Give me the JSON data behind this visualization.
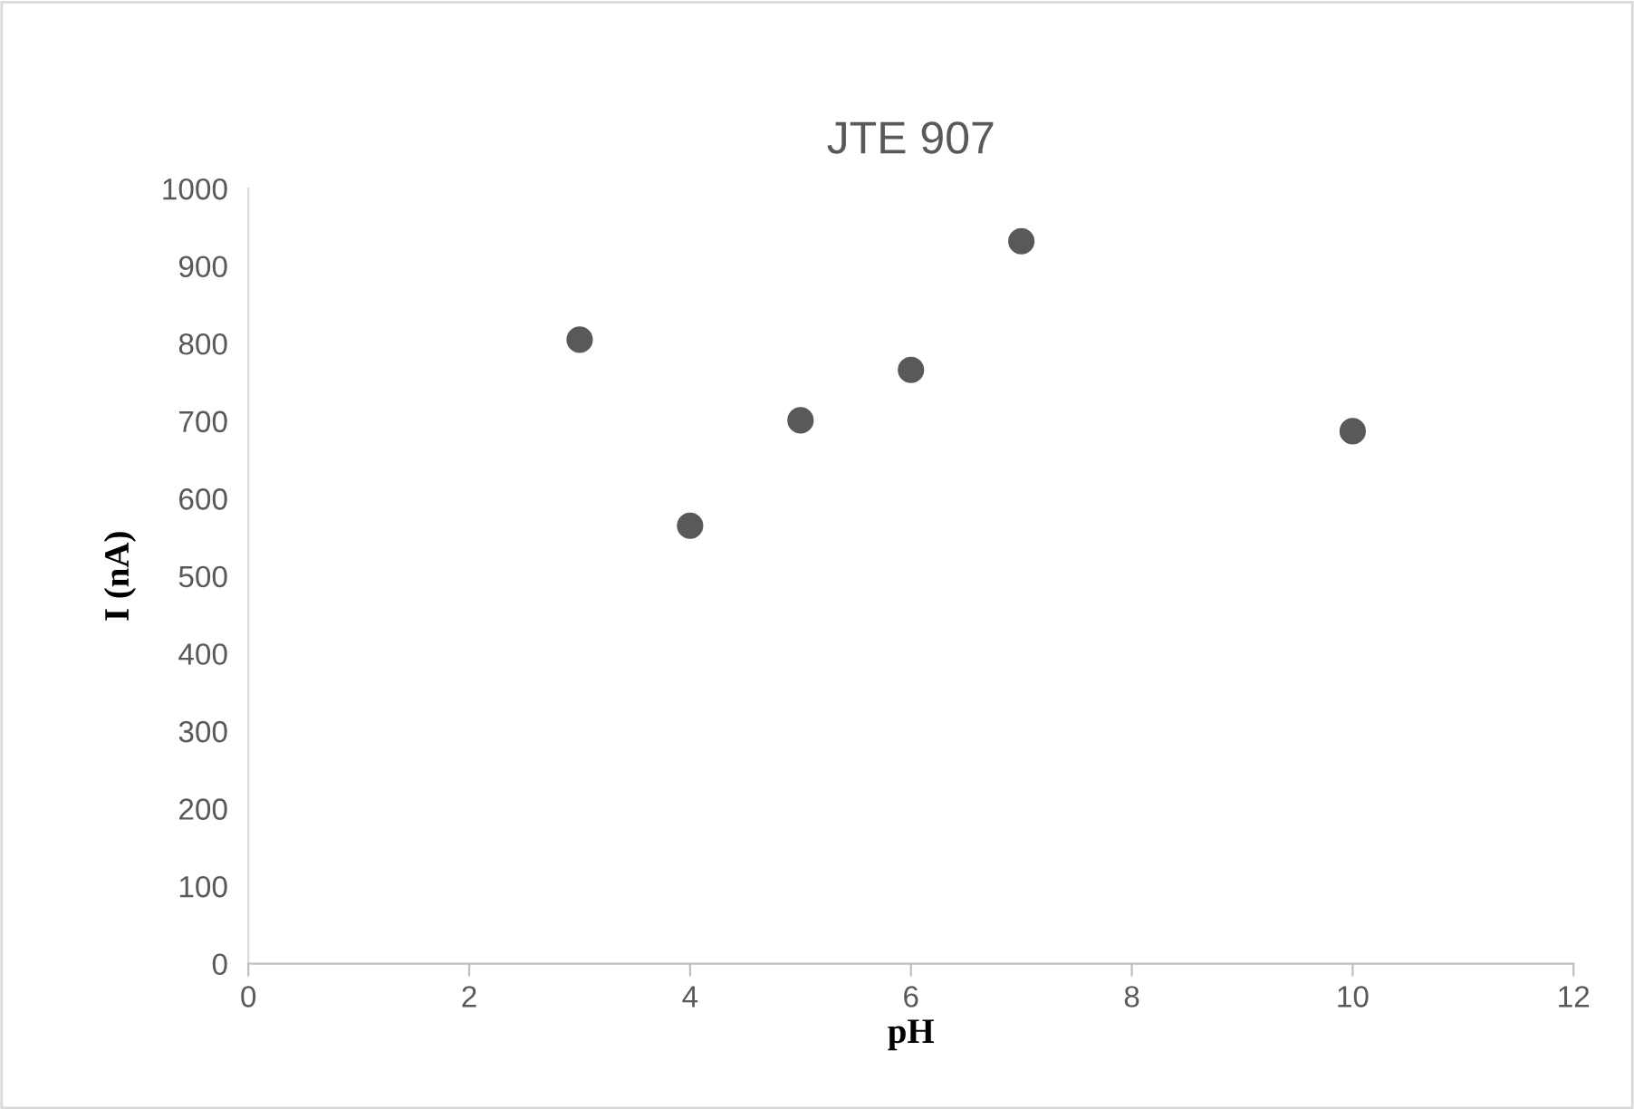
{
  "chart_data": {
    "type": "scatter",
    "title": "JTE 907",
    "xlabel": "pH",
    "ylabel": "I (nA)",
    "x": [
      3,
      4,
      5,
      6,
      7,
      10
    ],
    "series": [
      {
        "color": "#595959",
        "values": [
          805,
          565,
          701,
          766,
          932,
          687
        ]
      }
    ],
    "xlim": [
      0,
      12
    ],
    "xticks": [
      0,
      2,
      4,
      6,
      8,
      10,
      12
    ],
    "ylim": [
      0,
      1000
    ],
    "yticks": [
      0,
      100,
      200,
      300,
      400,
      500,
      600,
      700,
      800,
      900,
      1000
    ],
    "grid": false,
    "legend": false,
    "marker": "circle"
  }
}
